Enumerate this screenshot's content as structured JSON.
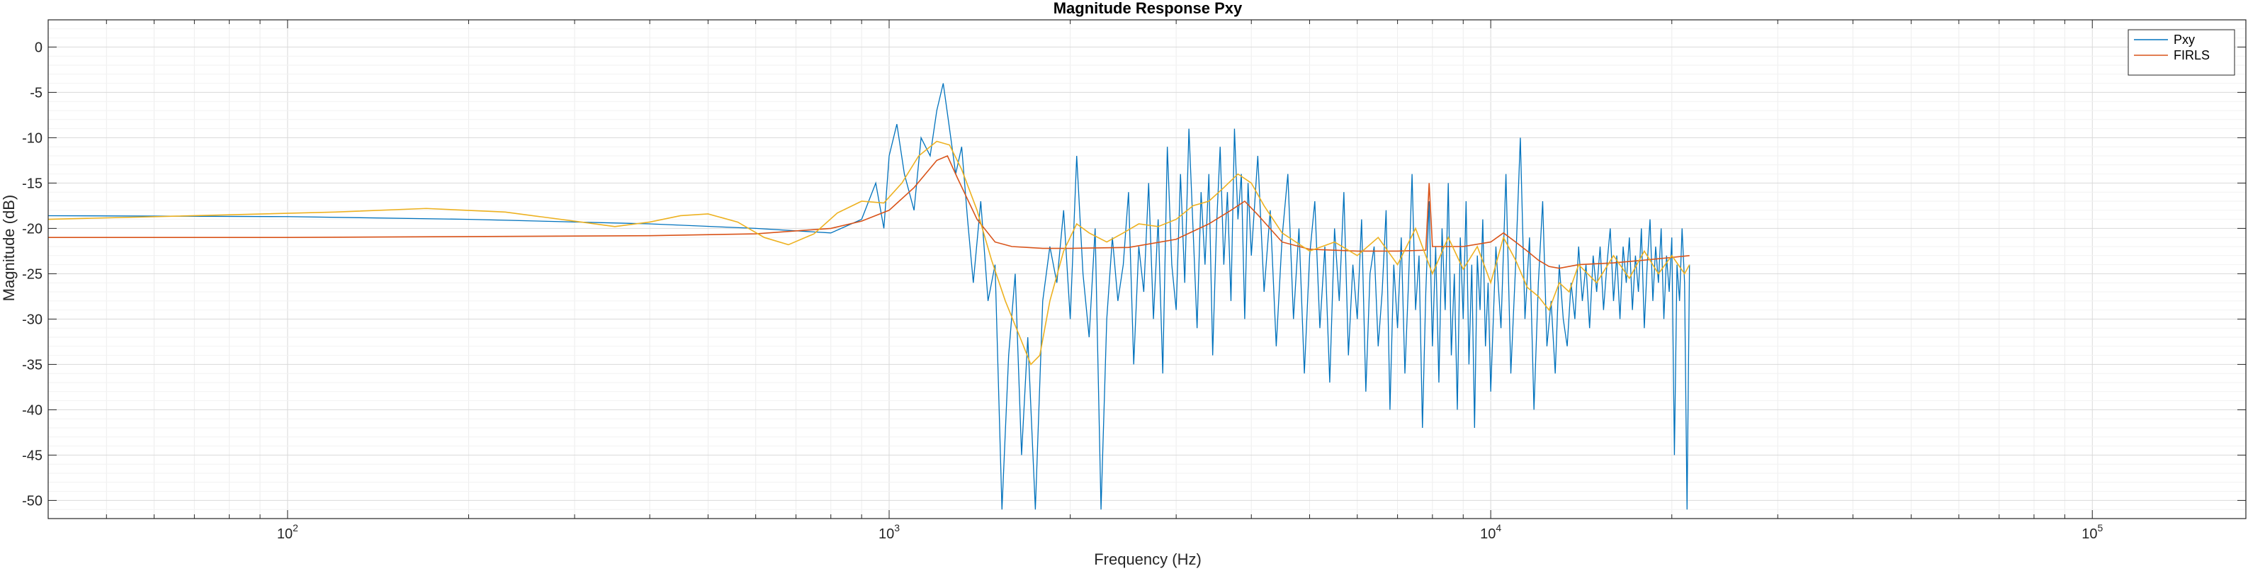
{
  "chart_data": {
    "type": "line",
    "title": "Magnitude Response Pxy",
    "xlabel": "Frequency (Hz)",
    "ylabel": "Magnitude (dB)",
    "xscale": "log",
    "xlim": [
      40,
      180000
    ],
    "ylim": [
      -52,
      3
    ],
    "x_ticks": [
      {
        "value": 100,
        "base": "10",
        "exp": "2"
      },
      {
        "value": 1000,
        "base": "10",
        "exp": "3"
      },
      {
        "value": 10000,
        "base": "10",
        "exp": "4"
      },
      {
        "value": 100000,
        "base": "10",
        "exp": "5"
      }
    ],
    "y_ticks": [
      0,
      -5,
      -10,
      -15,
      -20,
      -25,
      -30,
      -35,
      -40,
      -45,
      -50
    ],
    "grid": true,
    "minor_grid": true,
    "legend": {
      "position": "top-right",
      "entries": [
        "Pxy",
        "FIRLS"
      ]
    },
    "series": [
      {
        "name": "Pxy",
        "color": "#0072BD",
        "points": [
          [
            40,
            -18.6
          ],
          [
            100,
            -18.7
          ],
          [
            200,
            -19.0
          ],
          [
            400,
            -19.5
          ],
          [
            600,
            -20.0
          ],
          [
            800,
            -20.5
          ],
          [
            900,
            -19
          ],
          [
            950,
            -15
          ],
          [
            980,
            -20
          ],
          [
            1000,
            -12
          ],
          [
            1030,
            -8.5
          ],
          [
            1060,
            -14
          ],
          [
            1100,
            -18
          ],
          [
            1130,
            -10
          ],
          [
            1170,
            -12
          ],
          [
            1200,
            -7
          ],
          [
            1230,
            -4
          ],
          [
            1260,
            -9
          ],
          [
            1290,
            -14
          ],
          [
            1320,
            -11
          ],
          [
            1350,
            -19
          ],
          [
            1380,
            -26
          ],
          [
            1420,
            -17
          ],
          [
            1460,
            -28
          ],
          [
            1500,
            -24
          ],
          [
            1540,
            -51
          ],
          [
            1580,
            -34
          ],
          [
            1620,
            -25
          ],
          [
            1660,
            -45
          ],
          [
            1700,
            -32
          ],
          [
            1750,
            -51
          ],
          [
            1800,
            -28
          ],
          [
            1850,
            -22
          ],
          [
            1900,
            -26
          ],
          [
            1950,
            -18
          ],
          [
            2000,
            -30
          ],
          [
            2050,
            -12
          ],
          [
            2100,
            -25
          ],
          [
            2150,
            -32
          ],
          [
            2200,
            -20
          ],
          [
            2250,
            -51
          ],
          [
            2300,
            -30
          ],
          [
            2350,
            -21
          ],
          [
            2400,
            -28
          ],
          [
            2450,
            -24
          ],
          [
            2500,
            -16
          ],
          [
            2550,
            -35
          ],
          [
            2600,
            -22
          ],
          [
            2650,
            -27
          ],
          [
            2700,
            -15
          ],
          [
            2750,
            -30
          ],
          [
            2800,
            -19
          ],
          [
            2850,
            -36
          ],
          [
            2900,
            -11
          ],
          [
            2950,
            -24
          ],
          [
            3000,
            -29
          ],
          [
            3050,
            -14
          ],
          [
            3100,
            -26
          ],
          [
            3150,
            -9
          ],
          [
            3200,
            -20
          ],
          [
            3250,
            -31
          ],
          [
            3300,
            -16
          ],
          [
            3350,
            -24
          ],
          [
            3400,
            -14
          ],
          [
            3450,
            -34
          ],
          [
            3500,
            -20
          ],
          [
            3550,
            -11
          ],
          [
            3600,
            -24
          ],
          [
            3650,
            -16
          ],
          [
            3700,
            -28
          ],
          [
            3750,
            -9
          ],
          [
            3800,
            -19
          ],
          [
            3850,
            -14
          ],
          [
            3900,
            -30
          ],
          [
            3950,
            -15
          ],
          [
            4000,
            -23
          ],
          [
            4100,
            -12
          ],
          [
            4200,
            -27
          ],
          [
            4300,
            -18
          ],
          [
            4400,
            -33
          ],
          [
            4500,
            -21
          ],
          [
            4600,
            -14
          ],
          [
            4700,
            -30
          ],
          [
            4800,
            -20
          ],
          [
            4900,
            -36
          ],
          [
            5000,
            -23
          ],
          [
            5100,
            -17
          ],
          [
            5200,
            -31
          ],
          [
            5300,
            -22
          ],
          [
            5400,
            -37
          ],
          [
            5500,
            -20
          ],
          [
            5600,
            -28
          ],
          [
            5700,
            -16
          ],
          [
            5800,
            -34
          ],
          [
            5900,
            -24
          ],
          [
            6000,
            -30
          ],
          [
            6100,
            -19
          ],
          [
            6200,
            -38
          ],
          [
            6300,
            -25
          ],
          [
            6400,
            -22
          ],
          [
            6500,
            -33
          ],
          [
            6600,
            -27
          ],
          [
            6700,
            -18
          ],
          [
            6800,
            -40
          ],
          [
            6900,
            -24
          ],
          [
            7000,
            -31
          ],
          [
            7100,
            -21
          ],
          [
            7200,
            -36
          ],
          [
            7300,
            -26
          ],
          [
            7400,
            -14
          ],
          [
            7500,
            -29
          ],
          [
            7600,
            -23
          ],
          [
            7700,
            -42
          ],
          [
            7800,
            -27
          ],
          [
            7900,
            -17
          ],
          [
            8000,
            -33
          ],
          [
            8100,
            -22
          ],
          [
            8200,
            -37
          ],
          [
            8300,
            -20
          ],
          [
            8400,
            -29
          ],
          [
            8500,
            -15
          ],
          [
            8600,
            -34
          ],
          [
            8700,
            -25
          ],
          [
            8800,
            -40
          ],
          [
            8900,
            -21
          ],
          [
            9000,
            -30
          ],
          [
            9100,
            -17
          ],
          [
            9200,
            -35
          ],
          [
            9300,
            -24
          ],
          [
            9400,
            -42
          ],
          [
            9500,
            -23
          ],
          [
            9600,
            -29
          ],
          [
            9700,
            -19
          ],
          [
            9800,
            -33
          ],
          [
            9900,
            -26
          ],
          [
            10000,
            -38
          ],
          [
            10200,
            -22
          ],
          [
            10400,
            -31
          ],
          [
            10600,
            -14
          ],
          [
            10800,
            -36
          ],
          [
            11000,
            -24
          ],
          [
            11200,
            -10
          ],
          [
            11400,
            -30
          ],
          [
            11600,
            -21
          ],
          [
            11800,
            -40
          ],
          [
            12000,
            -26
          ],
          [
            12200,
            -17
          ],
          [
            12400,
            -33
          ],
          [
            12600,
            -28
          ],
          [
            12800,
            -36
          ],
          [
            13000,
            -24
          ],
          [
            13200,
            -30
          ],
          [
            13400,
            -33
          ],
          [
            13600,
            -26
          ],
          [
            13800,
            -30
          ],
          [
            14000,
            -22
          ],
          [
            14200,
            -28
          ],
          [
            14400,
            -24
          ],
          [
            14600,
            -31
          ],
          [
            14800,
            -23
          ],
          [
            15000,
            -27
          ],
          [
            15200,
            -22
          ],
          [
            15400,
            -29
          ],
          [
            15600,
            -24
          ],
          [
            15800,
            -20
          ],
          [
            16000,
            -28
          ],
          [
            16200,
            -23
          ],
          [
            16400,
            -30
          ],
          [
            16600,
            -22
          ],
          [
            16800,
            -26
          ],
          [
            17000,
            -21
          ],
          [
            17200,
            -29
          ],
          [
            17400,
            -23
          ],
          [
            17600,
            -27
          ],
          [
            17800,
            -20
          ],
          [
            18000,
            -31
          ],
          [
            18200,
            -24
          ],
          [
            18400,
            -19
          ],
          [
            18600,
            -28
          ],
          [
            18800,
            -22
          ],
          [
            19000,
            -26
          ],
          [
            19200,
            -20
          ],
          [
            19400,
            -30
          ],
          [
            19600,
            -23
          ],
          [
            19800,
            -27
          ],
          [
            20000,
            -21
          ],
          [
            20200,
            -45
          ],
          [
            20400,
            -24
          ],
          [
            20600,
            -28
          ],
          [
            20800,
            -20
          ],
          [
            21000,
            -26
          ],
          [
            21200,
            -51
          ],
          [
            21400,
            -24
          ]
        ]
      },
      {
        "name": "FIRLS",
        "color": "#D95319",
        "points": [
          [
            40,
            -21.0
          ],
          [
            100,
            -21.0
          ],
          [
            200,
            -20.9
          ],
          [
            400,
            -20.8
          ],
          [
            600,
            -20.6
          ],
          [
            800,
            -20.0
          ],
          [
            900,
            -19.2
          ],
          [
            1000,
            -18.0
          ],
          [
            1100,
            -15.5
          ],
          [
            1200,
            -12.5
          ],
          [
            1250,
            -12.0
          ],
          [
            1300,
            -14.5
          ],
          [
            1400,
            -19.0
          ],
          [
            1500,
            -21.5
          ],
          [
            1600,
            -22.0
          ],
          [
            1800,
            -22.2
          ],
          [
            2000,
            -22.2
          ],
          [
            2500,
            -22.1
          ],
          [
            3000,
            -21.2
          ],
          [
            3400,
            -19.5
          ],
          [
            3700,
            -18.0
          ],
          [
            3900,
            -17.0
          ],
          [
            4100,
            -18.5
          ],
          [
            4500,
            -21.5
          ],
          [
            5000,
            -22.3
          ],
          [
            6000,
            -22.5
          ],
          [
            7000,
            -22.5
          ],
          [
            7800,
            -22.4
          ],
          [
            7900,
            -15.0
          ],
          [
            8000,
            -22.0
          ],
          [
            9000,
            -22.0
          ],
          [
            10000,
            -21.5
          ],
          [
            10500,
            -20.5
          ],
          [
            11000,
            -21.5
          ],
          [
            11500,
            -22.5
          ],
          [
            12000,
            -23.5
          ],
          [
            12500,
            -24.2
          ],
          [
            13000,
            -24.4
          ],
          [
            14000,
            -24.0
          ],
          [
            16000,
            -23.8
          ],
          [
            18000,
            -23.5
          ],
          [
            20000,
            -23.2
          ],
          [
            21400,
            -23.0
          ]
        ]
      },
      {
        "color": "#EDB120",
        "points": [
          [
            40,
            -19.0
          ],
          [
            80,
            -18.5
          ],
          [
            120,
            -18.2
          ],
          [
            170,
            -17.8
          ],
          [
            230,
            -18.2
          ],
          [
            300,
            -19.2
          ],
          [
            350,
            -19.8
          ],
          [
            400,
            -19.3
          ],
          [
            450,
            -18.6
          ],
          [
            500,
            -18.4
          ],
          [
            560,
            -19.3
          ],
          [
            620,
            -21.0
          ],
          [
            680,
            -21.8
          ],
          [
            750,
            -20.6
          ],
          [
            820,
            -18.3
          ],
          [
            900,
            -17.0
          ],
          [
            980,
            -17.2
          ],
          [
            1050,
            -15.0
          ],
          [
            1120,
            -12.0
          ],
          [
            1200,
            -10.4
          ],
          [
            1260,
            -10.8
          ],
          [
            1320,
            -13.5
          ],
          [
            1400,
            -18.0
          ],
          [
            1480,
            -23.5
          ],
          [
            1560,
            -28.0
          ],
          [
            1650,
            -32.0
          ],
          [
            1720,
            -35.0
          ],
          [
            1780,
            -34.0
          ],
          [
            1850,
            -28.0
          ],
          [
            1950,
            -22.5
          ],
          [
            2050,
            -19.5
          ],
          [
            2150,
            -20.5
          ],
          [
            2300,
            -21.5
          ],
          [
            2450,
            -20.5
          ],
          [
            2600,
            -19.5
          ],
          [
            2800,
            -19.8
          ],
          [
            3000,
            -19.0
          ],
          [
            3200,
            -17.5
          ],
          [
            3400,
            -17.0
          ],
          [
            3600,
            -15.5
          ],
          [
            3800,
            -14.0
          ],
          [
            4000,
            -15.0
          ],
          [
            4200,
            -17.5
          ],
          [
            4500,
            -20.5
          ],
          [
            5000,
            -22.5
          ],
          [
            5500,
            -21.5
          ],
          [
            6000,
            -23.0
          ],
          [
            6500,
            -21.0
          ],
          [
            7000,
            -24.0
          ],
          [
            7500,
            -20.0
          ],
          [
            8000,
            -25.0
          ],
          [
            8500,
            -21.0
          ],
          [
            9000,
            -24.5
          ],
          [
            9500,
            -22.0
          ],
          [
            10000,
            -26.0
          ],
          [
            10500,
            -21.0
          ],
          [
            11000,
            -23.5
          ],
          [
            11500,
            -26.5
          ],
          [
            12000,
            -27.5
          ],
          [
            12500,
            -29.0
          ],
          [
            13000,
            -26.0
          ],
          [
            13500,
            -27.0
          ],
          [
            14000,
            -24.0
          ],
          [
            15000,
            -26.0
          ],
          [
            16000,
            -23.0
          ],
          [
            17000,
            -25.5
          ],
          [
            18000,
            -22.5
          ],
          [
            19000,
            -25.0
          ],
          [
            20000,
            -23.0
          ],
          [
            21000,
            -25.0
          ],
          [
            21400,
            -24.0
          ]
        ]
      }
    ]
  }
}
